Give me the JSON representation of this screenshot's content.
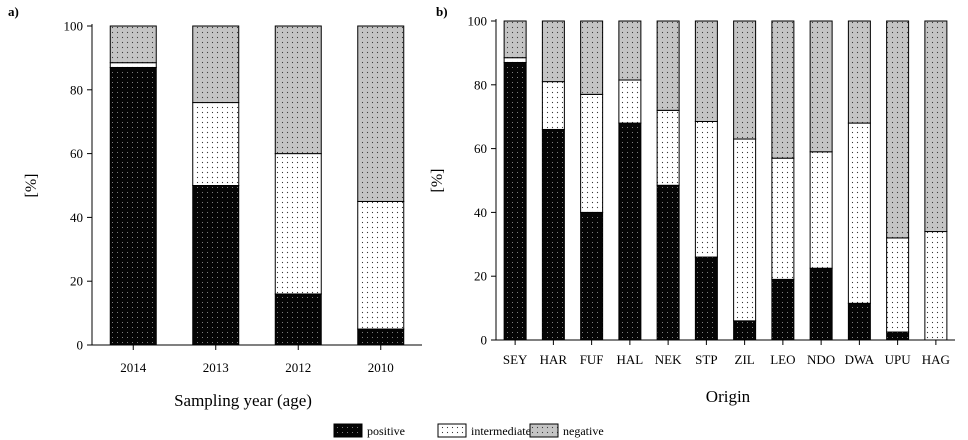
{
  "legend": {
    "positive": "positive",
    "intermediate": "intermediate",
    "negative": "negative"
  },
  "chart_data": [
    {
      "type": "bar",
      "stacked": true,
      "panel_label": "a)",
      "xlabel": "Sampling year (age)",
      "ylabel": "[%]",
      "ylim": [
        0,
        100
      ],
      "yticks": [
        0,
        20,
        40,
        60,
        80,
        100
      ],
      "grid": false,
      "legend_position": "bottom",
      "categories": [
        "2014",
        "2013",
        "2012",
        "2010"
      ],
      "series": [
        {
          "name": "positive",
          "values": [
            87,
            50,
            16,
            5
          ]
        },
        {
          "name": "intermediate",
          "values": [
            1.5,
            26,
            44,
            40
          ]
        },
        {
          "name": "negative",
          "values": [
            11.5,
            24,
            40,
            55
          ]
        }
      ]
    },
    {
      "type": "bar",
      "stacked": true,
      "panel_label": "b)",
      "xlabel": "Origin",
      "ylabel": "[%]",
      "ylim": [
        0,
        100
      ],
      "yticks": [
        0,
        20,
        40,
        60,
        80,
        100
      ],
      "grid": false,
      "legend_position": "bottom",
      "categories": [
        "SEY",
        "HAR",
        "FUF",
        "HAL",
        "NEK",
        "STP",
        "ZIL",
        "LEO",
        "NDO",
        "DWA",
        "UPU",
        "HAG"
      ],
      "series": [
        {
          "name": "positive",
          "values": [
            87,
            66,
            40,
            68,
            48.5,
            26,
            6,
            19,
            22.5,
            11.5,
            2.5,
            0
          ]
        },
        {
          "name": "intermediate",
          "values": [
            1.5,
            15,
            37,
            13.5,
            23.5,
            42.5,
            57,
            38,
            36.5,
            56.5,
            29.5,
            34
          ]
        },
        {
          "name": "negative",
          "values": [
            11.5,
            19,
            23,
            18.5,
            28,
            31.5,
            37,
            43,
            41,
            32,
            68,
            66
          ]
        }
      ]
    }
  ]
}
